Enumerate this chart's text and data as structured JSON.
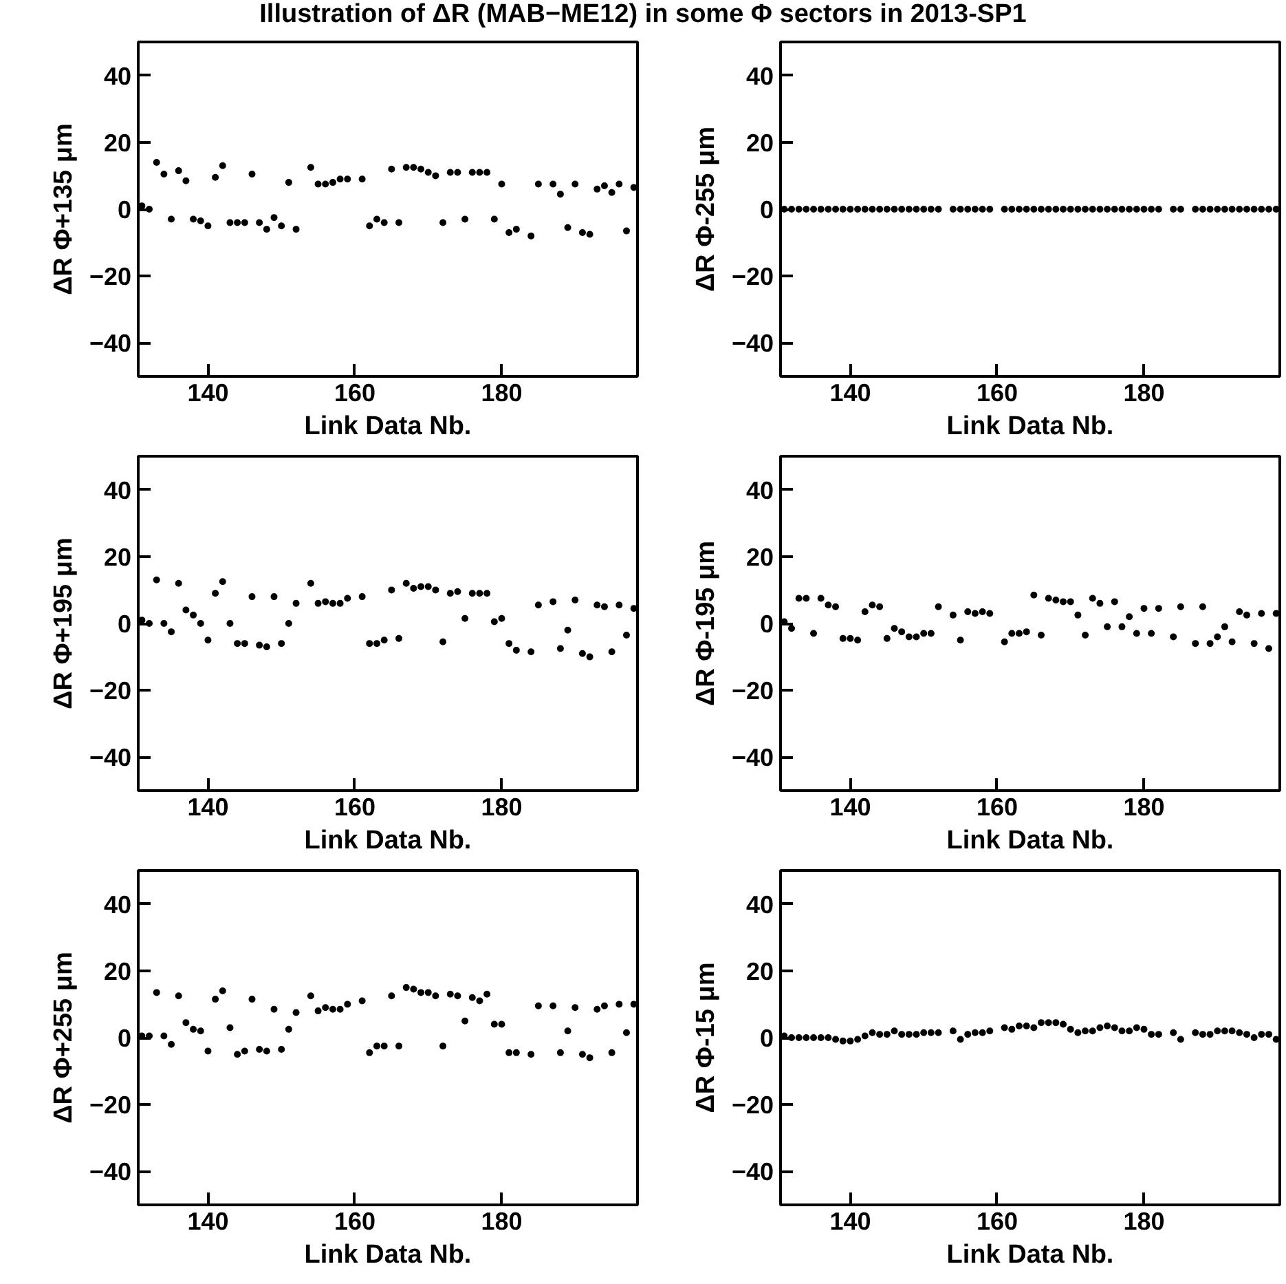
{
  "chart_data": [
    {
      "type": "scatter",
      "title": "Illustration of ΔR (MAB−ME12) in some Φ sectors in 2013-SP1",
      "xlabel": "Link Data Nb.",
      "ylabel": "ΔR Φ+135 μm",
      "xlim": [
        130.5,
        198.5
      ],
      "ylim": [
        -50,
        50
      ],
      "xticks": [
        140,
        160,
        180
      ],
      "yticks": [
        -40,
        -20,
        0,
        20,
        40
      ],
      "grid": false,
      "marker": "circle",
      "color": "#000000",
      "x": [
        131,
        132,
        133,
        134,
        135,
        136,
        137,
        138,
        139,
        140,
        141,
        142,
        143,
        144,
        145,
        146,
        147,
        148,
        149,
        150,
        151,
        152,
        154,
        155,
        156,
        157,
        158,
        159,
        161,
        162,
        163,
        164,
        165,
        166,
        167,
        168,
        169,
        170,
        171,
        172,
        173,
        174,
        175,
        176,
        177,
        178,
        179,
        180,
        181,
        182,
        184,
        185,
        187,
        188,
        189,
        190,
        191,
        192,
        193,
        194,
        195,
        196,
        197,
        198
      ],
      "values": [
        1,
        0,
        14,
        10.5,
        -3,
        11.5,
        8.5,
        -3,
        -3.5,
        -5,
        9.5,
        13,
        -4,
        -4,
        -4,
        10.5,
        -4,
        -6,
        -2.5,
        -5,
        8,
        -6,
        12.5,
        7.5,
        7.5,
        8,
        9,
        9,
        9,
        -5,
        -3,
        -4,
        12,
        -4,
        12.5,
        12.5,
        12,
        11,
        10,
        -4,
        11,
        11,
        -3,
        11,
        11,
        11,
        -3,
        7.5,
        -7,
        -6,
        -8,
        7.5,
        7.5,
        4.5,
        -5.5,
        7.5,
        -7,
        -7.5,
        6,
        7,
        5,
        7.5,
        -6.5,
        6.5
      ]
    },
    {
      "type": "scatter",
      "xlabel": "Link Data Nb.",
      "ylabel": "ΔR Φ-255 μm",
      "xlim": [
        130.5,
        198.5
      ],
      "ylim": [
        -50,
        50
      ],
      "xticks": [
        140,
        160,
        180
      ],
      "yticks": [
        -40,
        -20,
        0,
        20,
        40
      ],
      "grid": false,
      "marker": "circle",
      "color": "#000000",
      "x": [
        131,
        132,
        133,
        134,
        135,
        136,
        137,
        138,
        139,
        140,
        141,
        142,
        143,
        144,
        145,
        146,
        147,
        148,
        149,
        150,
        151,
        152,
        154,
        155,
        156,
        157,
        158,
        159,
        161,
        162,
        163,
        164,
        165,
        166,
        167,
        168,
        169,
        170,
        171,
        172,
        173,
        174,
        175,
        176,
        177,
        178,
        179,
        180,
        181,
        182,
        184,
        185,
        187,
        188,
        189,
        190,
        191,
        192,
        193,
        194,
        195,
        196,
        197,
        198
      ],
      "values": [
        0,
        0,
        0,
        0,
        0,
        0,
        0,
        0,
        0,
        0,
        0,
        0,
        0,
        0,
        0,
        0,
        0,
        0,
        0,
        0,
        0,
        0,
        0,
        0,
        0,
        0,
        0,
        0,
        0,
        0,
        0,
        0,
        0,
        0,
        0,
        0,
        0,
        0,
        0,
        0,
        0,
        0,
        0,
        0,
        0,
        0,
        0,
        0,
        0,
        0,
        0,
        0,
        0,
        0,
        0,
        0,
        0,
        0,
        0,
        0,
        0,
        0,
        0,
        0
      ]
    },
    {
      "type": "scatter",
      "xlabel": "Link Data Nb.",
      "ylabel": "ΔR Φ+195 μm",
      "xlim": [
        130.5,
        198.5
      ],
      "ylim": [
        -50,
        50
      ],
      "xticks": [
        140,
        160,
        180
      ],
      "yticks": [
        -40,
        -20,
        0,
        20,
        40
      ],
      "grid": false,
      "marker": "circle",
      "color": "#000000",
      "x": [
        131,
        132,
        133,
        134,
        135,
        136,
        137,
        138,
        139,
        140,
        141,
        142,
        143,
        144,
        145,
        146,
        147,
        148,
        149,
        150,
        151,
        152,
        154,
        155,
        156,
        157,
        158,
        159,
        161,
        162,
        163,
        164,
        165,
        166,
        167,
        168,
        169,
        170,
        171,
        172,
        173,
        174,
        175,
        176,
        177,
        178,
        179,
        180,
        181,
        182,
        184,
        185,
        187,
        188,
        189,
        190,
        191,
        192,
        193,
        194,
        195,
        196,
        197,
        198
      ],
      "values": [
        1,
        0,
        13,
        0,
        -2.5,
        12,
        4,
        2.5,
        0,
        -5,
        9,
        12.5,
        0,
        -6,
        -6,
        8,
        -6.5,
        -7,
        8,
        -6,
        0,
        6,
        12,
        6,
        6.5,
        6,
        6,
        7.5,
        8,
        -6,
        -6,
        -5,
        10,
        -4.5,
        12,
        10.5,
        11,
        11,
        10,
        -5.5,
        9,
        9.5,
        1.5,
        9,
        9,
        9,
        0.5,
        1.5,
        -6,
        -8,
        -8.5,
        5.5,
        6.5,
        -7.5,
        -2,
        7,
        -9,
        -10,
        5.5,
        5,
        -8.5,
        5.5,
        -3.5,
        4.5
      ]
    },
    {
      "type": "scatter",
      "xlabel": "Link Data Nb.",
      "ylabel": "ΔR Φ-195 μm",
      "xlim": [
        130.5,
        198.5
      ],
      "ylim": [
        -50,
        50
      ],
      "xticks": [
        140,
        160,
        180
      ],
      "yticks": [
        -40,
        -20,
        0,
        20,
        40
      ],
      "grid": false,
      "marker": "circle",
      "color": "#000000",
      "x": [
        131,
        132,
        133,
        134,
        135,
        136,
        137,
        138,
        139,
        140,
        141,
        142,
        143,
        144,
        145,
        146,
        147,
        148,
        149,
        150,
        151,
        152,
        154,
        155,
        156,
        157,
        158,
        159,
        161,
        162,
        163,
        164,
        165,
        166,
        167,
        168,
        169,
        170,
        171,
        172,
        173,
        174,
        175,
        176,
        177,
        178,
        179,
        180,
        181,
        182,
        184,
        185,
        187,
        188,
        189,
        190,
        191,
        192,
        193,
        194,
        195,
        196,
        197,
        198
      ],
      "values": [
        0.5,
        -1.5,
        7.5,
        7.5,
        -3,
        7.5,
        5.5,
        5,
        -4.5,
        -4.5,
        -5,
        3.5,
        5.5,
        5,
        -4.5,
        -1.5,
        -2.5,
        -4,
        -4,
        -3,
        -3,
        5,
        2.5,
        -5,
        3.5,
        3,
        3.5,
        3,
        -5.5,
        -3,
        -3,
        -2.5,
        8.5,
        -3.5,
        7.5,
        7,
        6.5,
        6.5,
        2.5,
        -3.5,
        7.5,
        6,
        -1,
        6.5,
        -1,
        2,
        -3,
        4.5,
        -3,
        4.5,
        -4,
        5,
        -6,
        5,
        -6,
        -4,
        -1,
        -5.5,
        3.5,
        2.5,
        -6,
        3,
        -7.5,
        3
      ]
    },
    {
      "type": "scatter",
      "xlabel": "Link Data Nb.",
      "ylabel": "ΔR Φ+255 μm",
      "xlim": [
        130.5,
        198.5
      ],
      "ylim": [
        -50,
        50
      ],
      "xticks": [
        140,
        160,
        180
      ],
      "yticks": [
        -40,
        -20,
        0,
        20,
        40
      ],
      "grid": false,
      "marker": "circle",
      "color": "#000000",
      "x": [
        131,
        132,
        133,
        134,
        135,
        136,
        137,
        138,
        139,
        140,
        141,
        142,
        143,
        144,
        145,
        146,
        147,
        148,
        149,
        150,
        151,
        152,
        154,
        155,
        156,
        157,
        158,
        159,
        161,
        162,
        163,
        164,
        165,
        166,
        167,
        168,
        169,
        170,
        171,
        172,
        173,
        174,
        175,
        176,
        177,
        178,
        179,
        180,
        181,
        182,
        184,
        185,
        187,
        188,
        189,
        190,
        191,
        192,
        193,
        194,
        195,
        196,
        197,
        198
      ],
      "values": [
        0.5,
        0.5,
        13.5,
        0.5,
        -2,
        12.5,
        4.5,
        2.5,
        2,
        -4,
        11.5,
        14,
        3,
        -5,
        -4,
        11.5,
        -3.5,
        -4,
        8.5,
        -3.5,
        2.5,
        7.5,
        12.5,
        8,
        9,
        8.5,
        8.5,
        10,
        11,
        -4.5,
        -2.5,
        -2.5,
        12.5,
        -2.5,
        15,
        14.5,
        13.5,
        13.5,
        12.5,
        -2.5,
        13,
        12.5,
        5,
        12,
        11,
        13,
        4,
        4,
        -4.5,
        -4.5,
        -5,
        9.5,
        9.5,
        -4.5,
        2,
        9,
        -5,
        -6,
        8.5,
        9.5,
        -4.5,
        10,
        1.5,
        10
      ]
    },
    {
      "type": "scatter",
      "xlabel": "Link Data Nb.",
      "ylabel": "ΔR Φ-15 μm",
      "xlim": [
        130.5,
        198.5
      ],
      "ylim": [
        -50,
        50
      ],
      "xticks": [
        140,
        160,
        180
      ],
      "yticks": [
        -40,
        -20,
        0,
        20,
        40
      ],
      "grid": false,
      "marker": "circle",
      "color": "#000000",
      "x": [
        131,
        132,
        133,
        134,
        135,
        136,
        137,
        138,
        139,
        140,
        141,
        142,
        143,
        144,
        145,
        146,
        147,
        148,
        149,
        150,
        151,
        152,
        154,
        155,
        156,
        157,
        158,
        159,
        161,
        162,
        163,
        164,
        165,
        166,
        167,
        168,
        169,
        170,
        171,
        172,
        173,
        174,
        175,
        176,
        177,
        178,
        179,
        180,
        181,
        182,
        184,
        185,
        187,
        188,
        189,
        190,
        191,
        192,
        193,
        194,
        195,
        196,
        197,
        198
      ],
      "values": [
        0.5,
        0,
        0,
        0,
        0,
        0,
        0,
        -0.5,
        -1,
        -1,
        -0.5,
        0.5,
        1.5,
        1,
        1,
        2,
        1,
        1,
        1,
        1.5,
        1.5,
        1.5,
        2,
        -0.5,
        1,
        1.5,
        1.5,
        2,
        3,
        2.5,
        3.5,
        3.5,
        3,
        4.5,
        4.5,
        4.5,
        4,
        2.5,
        1.5,
        2,
        2,
        3,
        3.5,
        3,
        2,
        2,
        3,
        2.5,
        1,
        1,
        1.5,
        -0.5,
        1.5,
        1,
        1,
        2,
        2,
        2,
        1.5,
        1,
        0,
        1,
        1,
        -0.5
      ]
    }
  ]
}
